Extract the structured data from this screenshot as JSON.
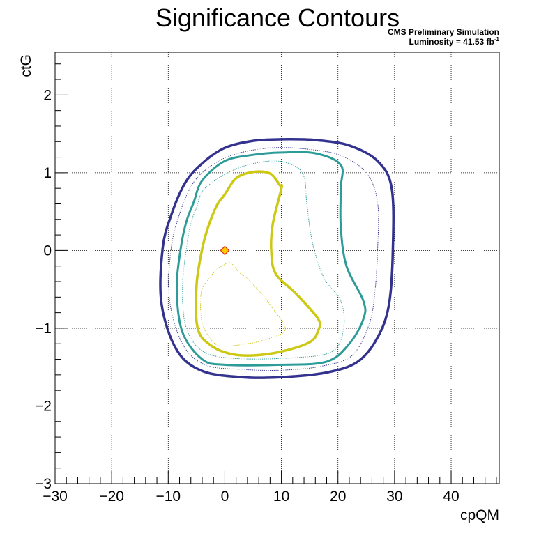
{
  "chart_data": {
    "type": "line",
    "title": "Significance Contours",
    "annotations": {
      "line1": "CMS Preliminary Simulation",
      "line2_prefix": "Luminosity = 41.53 fb",
      "line2_sup": "-1"
    },
    "xlabel": "cpQM",
    "ylabel": "ctG",
    "xlim": [
      -30,
      48.5
    ],
    "ylim": [
      -3,
      2.55
    ],
    "x_ticks": [
      -30,
      -20,
      -10,
      0,
      10,
      20,
      30,
      40
    ],
    "y_ticks": [
      -3,
      -2,
      -1,
      0,
      1,
      2
    ],
    "x_tick_labels": [
      "−30",
      "−20",
      "−10",
      "0",
      "10",
      "20",
      "30",
      "40"
    ],
    "y_tick_labels": [
      "−3",
      "−2",
      "−1",
      "0",
      "1",
      "2"
    ],
    "grid": true,
    "best_fit": {
      "x": 0,
      "y": 0,
      "color": "#ffcc00",
      "edge": "#e03020"
    },
    "series": [
      {
        "style": "solid",
        "width": 3.5,
        "color": "#33328f",
        "points": [
          [
            -4,
            1.12
          ],
          [
            0,
            1.32
          ],
          [
            5,
            1.41
          ],
          [
            10,
            1.43
          ],
          [
            16,
            1.42
          ],
          [
            22,
            1.35
          ],
          [
            27,
            1.15
          ],
          [
            29.5,
            0.8
          ],
          [
            29.7,
            0
          ],
          [
            29,
            -0.7
          ],
          [
            27,
            -1.12
          ],
          [
            23.5,
            -1.43
          ],
          [
            18,
            -1.57
          ],
          [
            10,
            -1.63
          ],
          [
            3,
            -1.63
          ],
          [
            -4,
            -1.55
          ],
          [
            -8.5,
            -1.28
          ],
          [
            -11.2,
            -0.68
          ],
          [
            -11,
            0.02
          ],
          [
            -9.5,
            0.45
          ],
          [
            -7,
            0.87
          ]
        ]
      },
      {
        "style": "dotted",
        "width": 1,
        "color": "#33328f",
        "points": [
          [
            -3.5,
            1.03
          ],
          [
            1,
            1.22
          ],
          [
            8,
            1.32
          ],
          [
            15,
            1.3
          ],
          [
            20.5,
            1.22
          ],
          [
            25,
            1.0
          ],
          [
            27,
            0.62
          ],
          [
            27,
            0
          ],
          [
            26.5,
            -0.55
          ],
          [
            25.5,
            -0.95
          ],
          [
            22.5,
            -1.35
          ],
          [
            17,
            -1.49
          ],
          [
            10,
            -1.54
          ],
          [
            3,
            -1.53
          ],
          [
            -3.5,
            -1.47
          ],
          [
            -7.5,
            -1.2
          ],
          [
            -9.8,
            -0.62
          ],
          [
            -9.5,
            0.02
          ],
          [
            -8,
            0.47
          ],
          [
            -6,
            0.82
          ]
        ]
      },
      {
        "style": "solid",
        "width": 3,
        "color": "#2d9c98",
        "points": [
          [
            -4,
            0.9
          ],
          [
            0,
            1.15
          ],
          [
            5,
            1.23
          ],
          [
            10,
            1.26
          ],
          [
            16,
            1.25
          ],
          [
            20.5,
            1.1
          ],
          [
            20.5,
            0.8
          ],
          [
            20.5,
            0.3
          ],
          [
            21.5,
            -0.2
          ],
          [
            24.5,
            -0.65
          ],
          [
            24.5,
            -0.88
          ],
          [
            22,
            -1.2
          ],
          [
            18,
            -1.43
          ],
          [
            10,
            -1.47
          ],
          [
            0,
            -1.47
          ],
          [
            -4,
            -1.4
          ],
          [
            -7.5,
            -1.05
          ],
          [
            -8.5,
            -0.5
          ],
          [
            -7.8,
            0.02
          ],
          [
            -6.8,
            0.37
          ],
          [
            -5.5,
            0.62
          ]
        ]
      },
      {
        "style": "dotted",
        "width": 1,
        "color": "#2d9c98",
        "points": [
          [
            -3.5,
            0.8
          ],
          [
            2,
            1.05
          ],
          [
            8,
            1.15
          ],
          [
            12,
            1.1
          ],
          [
            14,
            0.95
          ],
          [
            14.5,
            0.6
          ],
          [
            15.5,
            0.1
          ],
          [
            17.5,
            -0.35
          ],
          [
            20.5,
            -0.65
          ],
          [
            21,
            -1.0
          ],
          [
            19,
            -1.3
          ],
          [
            12,
            -1.38
          ],
          [
            2,
            -1.39
          ],
          [
            -3.8,
            -1.3
          ],
          [
            -6.8,
            -1.0
          ],
          [
            -7.5,
            -0.5
          ],
          [
            -6.8,
            0.02
          ],
          [
            -6,
            0.35
          ],
          [
            -5,
            0.55
          ]
        ]
      },
      {
        "style": "solid",
        "width": 3.5,
        "color": "#ccc814",
        "points": [
          [
            0,
            0.72
          ],
          [
            2,
            0.93
          ],
          [
            5,
            1.01
          ],
          [
            8,
            0.99
          ],
          [
            9.7,
            0.84
          ],
          [
            10,
            0.8
          ],
          [
            8.5,
            0.35
          ],
          [
            8.2,
            0
          ],
          [
            9,
            -0.3
          ],
          [
            12.5,
            -0.55
          ],
          [
            16.5,
            -0.88
          ],
          [
            16.5,
            -1.03
          ],
          [
            15,
            -1.18
          ],
          [
            10,
            -1.3
          ],
          [
            5,
            -1.35
          ],
          [
            1,
            -1.33
          ],
          [
            -2.5,
            -1.22
          ],
          [
            -4.8,
            -1.0
          ],
          [
            -5,
            -0.45
          ],
          [
            -4,
            0.02
          ],
          [
            -3,
            0.29
          ],
          [
            -1.8,
            0.52
          ],
          [
            -1,
            0.63
          ]
        ]
      },
      {
        "style": "dotted",
        "width": 1,
        "color": "#ccc814",
        "points": [
          [
            -0.5,
            -0.2
          ],
          [
            1,
            -0.16
          ],
          [
            2.5,
            -0.28
          ],
          [
            4,
            -0.36
          ],
          [
            5,
            -0.44
          ],
          [
            7,
            -0.6
          ],
          [
            9,
            -0.8
          ],
          [
            10.5,
            -0.95
          ],
          [
            10.3,
            -1.06
          ],
          [
            7,
            -1.15
          ],
          [
            4,
            -1.2
          ],
          [
            0,
            -1.23
          ],
          [
            -2,
            -1.18
          ],
          [
            -4,
            -0.93
          ],
          [
            -4.2,
            -0.55
          ],
          [
            -3,
            -0.38
          ],
          [
            -1.5,
            -0.25
          ]
        ]
      }
    ]
  }
}
